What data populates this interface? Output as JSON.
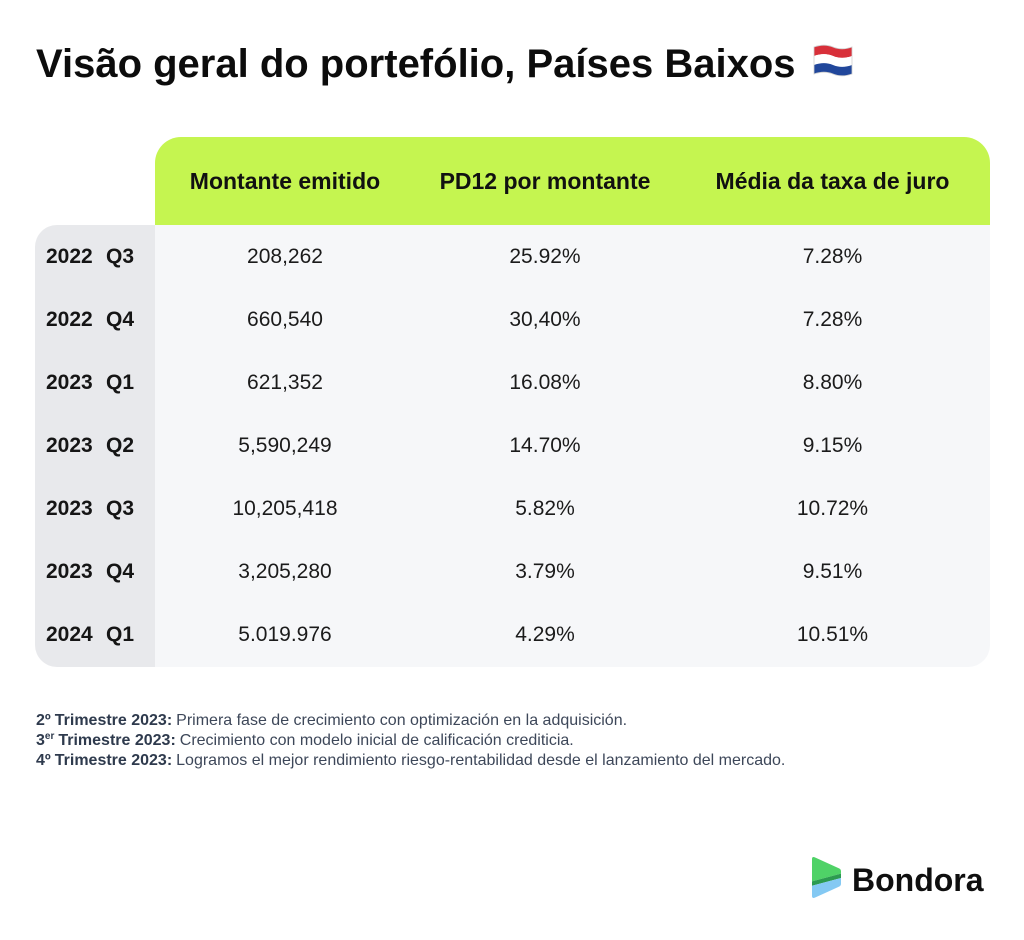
{
  "chart_data": {
    "type": "table",
    "title": "Visão geral do portefólio, Países Baixos",
    "columns": [
      "Montante emitido",
      "PD12 por montante",
      "Média da taxa de juro"
    ],
    "rows": [
      {
        "year": "2022",
        "quarter": "Q3",
        "cells": [
          "208,262",
          "25.92%",
          "7.28%"
        ]
      },
      {
        "year": "2022",
        "quarter": "Q4",
        "cells": [
          "660,540",
          "30,40%",
          "7.28%"
        ]
      },
      {
        "year": "2023",
        "quarter": "Q1",
        "cells": [
          "621,352",
          "16.08%",
          "8.80%"
        ]
      },
      {
        "year": "2023",
        "quarter": "Q2",
        "cells": [
          "5,590,249",
          "14.70%",
          "9.15%"
        ]
      },
      {
        "year": "2023",
        "quarter": "Q3",
        "cells": [
          "10,205,418",
          "5.82%",
          "10.72%"
        ]
      },
      {
        "year": "2023",
        "quarter": "Q4",
        "cells": [
          "3,205,280",
          "3.79%",
          "9.51%"
        ]
      },
      {
        "year": "2024",
        "quarter": "Q1",
        "cells": [
          "5.019.976",
          "4.29%",
          "10.51%"
        ]
      }
    ]
  },
  "notes": [
    {
      "ordinal": "2º",
      "period": "Trimestre 2023:",
      "text": "Primera fase de crecimiento con optimización en la adquisición."
    },
    {
      "ordinal": "3",
      "ordinal_sup": "er",
      "period": "Trimestre 2023:",
      "text": "Crecimiento con modelo inicial de calificación crediticia."
    },
    {
      "ordinal": "4º",
      "period": "Trimestre 2023:",
      "text": "Logramos el mejor rendimiento riesgo-rentabilidad desde el lanzamiento del mercado."
    }
  ],
  "logo": {
    "text": "Bondora",
    "icon": "bondora-logo-icon"
  },
  "icons": {
    "title_flag": "flag-netherlands-icon"
  },
  "colors": {
    "header_bg": "#C5F550",
    "row_header_bg": "#E8E9EC",
    "body_bg": "#F6F7F9",
    "text": "#111111",
    "note_label": "#2E3A4D",
    "note_text": "#3D4759",
    "flag_red": "#D8303A",
    "flag_white": "#FFFFFF",
    "flag_blue": "#21479B",
    "logo_green": "#4FD267",
    "logo_dark_green": "#2C9B50",
    "logo_blue": "#84C9F3"
  }
}
